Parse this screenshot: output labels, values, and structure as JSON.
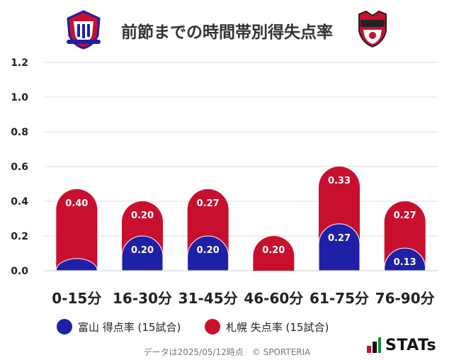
{
  "header": {
    "title": "前節までの時間帯別得失点率",
    "home_emblem_icon": "toyama-club-emblem-icon",
    "away_emblem_icon": "sapporo-club-emblem-icon"
  },
  "colors": {
    "home": "#1f1fa8",
    "away": "#c8102e",
    "grid": "#dddddd"
  },
  "legend": {
    "home_label": "富山 得点率 (15試合)",
    "away_label": "札幌 失点率 (15試合)"
  },
  "footer": {
    "source": "データは2025/05/12時点　© SPORTERIA",
    "brand": "STATs",
    "brand_icon": "stats-logo-icon"
  },
  "chart_data": {
    "type": "bar",
    "stacked": true,
    "categories": [
      "0-15分",
      "16-30分",
      "31-45分",
      "46-60分",
      "61-75分",
      "76-90分"
    ],
    "series": [
      {
        "name": "富山 得点率 (15試合)",
        "values": [
          0.07,
          0.2,
          0.2,
          0.0,
          0.27,
          0.13
        ],
        "labels": [
          "",
          "0.20",
          "0.20",
          "",
          "0.27",
          "0.13"
        ]
      },
      {
        "name": "札幌 失点率 (15試合)",
        "values": [
          0.4,
          0.2,
          0.27,
          0.2,
          0.33,
          0.27
        ],
        "labels": [
          "0.40",
          "0.20",
          "0.27",
          "0.20",
          "0.33",
          "0.27"
        ]
      }
    ],
    "yticks": [
      "0.0",
      "0.2",
      "0.4",
      "0.6",
      "0.8",
      "1.0",
      "1.2"
    ],
    "ylim": [
      0,
      1.2
    ],
    "grid": true,
    "legend_position": "bottom"
  }
}
